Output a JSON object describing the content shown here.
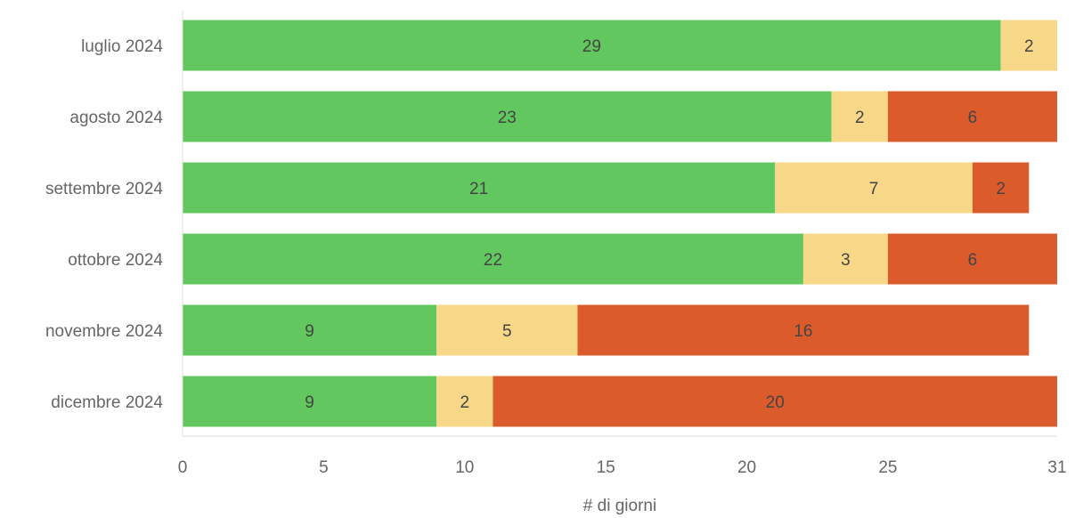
{
  "chart_data": {
    "type": "bar",
    "orientation": "horizontal",
    "stacked": true,
    "categories": [
      "luglio 2024",
      "agosto 2024",
      "settembre 2024",
      "ottobre 2024",
      "novembre 2024",
      "dicembre 2024"
    ],
    "series": [
      {
        "color": "#62c75e",
        "values": [
          29,
          23,
          21,
          22,
          9,
          9
        ]
      },
      {
        "color": "#f7d788",
        "values": [
          2,
          2,
          7,
          3,
          5,
          2
        ]
      },
      {
        "color": "#dc5b2d",
        "values": [
          0,
          6,
          2,
          6,
          16,
          20
        ]
      }
    ],
    "xlabel": "# di giorni",
    "xlim": [
      0,
      31
    ],
    "xticks": [
      0,
      5,
      10,
      15,
      20,
      25,
      31
    ],
    "grid": false,
    "legend": "none"
  }
}
